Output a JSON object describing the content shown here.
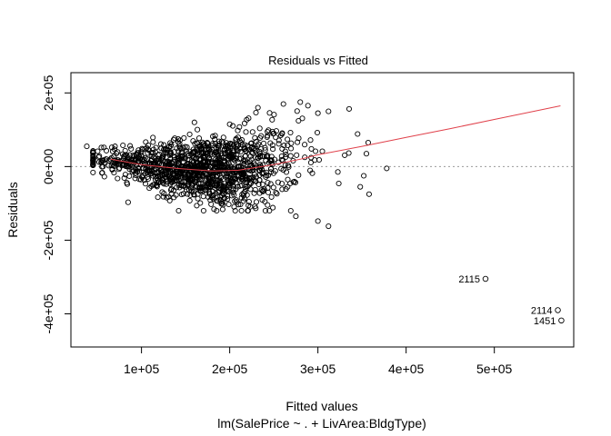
{
  "chart_data": {
    "type": "scatter",
    "title": "Residuals vs Fitted",
    "xlabel": "Fitted values",
    "subtitle": "lm(SalePrice ~ . + LivArea:BldgType)",
    "ylabel": "Residuals",
    "xlim": [
      20000,
      590000
    ],
    "ylim": [
      -490000,
      255000
    ],
    "x_ticks": [
      100000,
      200000,
      300000,
      400000,
      500000
    ],
    "x_tick_labels": [
      "1e+05",
      "2e+05",
      "3e+05",
      "4e+05",
      "5e+05"
    ],
    "y_ticks": [
      -400000,
      -200000,
      0,
      200000
    ],
    "y_tick_labels": [
      "-4e+05",
      "-2e+05",
      "0e+00",
      "2e+05"
    ],
    "reference_line": {
      "y": 0,
      "style": "dotted",
      "color": "#9a9a9a"
    },
    "smoother": {
      "color": "#e0404a",
      "x": [
        65000,
        100000,
        140000,
        180000,
        210000,
        250000,
        280000,
        300000,
        350000,
        400000,
        450000,
        500000,
        575000
      ],
      "y": [
        20000,
        5000,
        -5000,
        -12000,
        -10000,
        5000,
        20000,
        32000,
        55000,
        79000,
        103000,
        128000,
        165000
      ]
    },
    "labeled_points": [
      {
        "label": "2115",
        "x": 490000,
        "y": -305000
      },
      {
        "label": "2114",
        "x": 572000,
        "y": -390000
      },
      {
        "label": "1451",
        "x": 576000,
        "y": -418000
      }
    ],
    "notable_points": [
      {
        "x": 280000,
        "y": 175000
      },
      {
        "x": 232000,
        "y": 160000
      },
      {
        "x": 300000,
        "y": 145000
      },
      {
        "x": 312000,
        "y": 150000
      },
      {
        "x": 275000,
        "y": -135000
      },
      {
        "x": 300000,
        "y": -148000
      },
      {
        "x": 312000,
        "y": -162000
      },
      {
        "x": 378000,
        "y": -5000
      },
      {
        "x": 357000,
        "y": 65000
      },
      {
        "x": 358000,
        "y": -75000
      },
      {
        "x": 348000,
        "y": -55000
      },
      {
        "x": 352000,
        "y": -25000
      },
      {
        "x": 355000,
        "y": 35000
      },
      {
        "x": 38000,
        "y": 55000
      },
      {
        "x": 160000,
        "y": 120000
      },
      {
        "x": 200000,
        "y": 115000
      }
    ],
    "point_cloud_rule": "N=1300; seed=12345; x normal mean 170000 sd 55000 clipped 45000..345000; y = trend(x) + normal sd (16000 + 0.22*(x-40000)), clipped -120000..170000",
    "point_style": "open-circle"
  }
}
